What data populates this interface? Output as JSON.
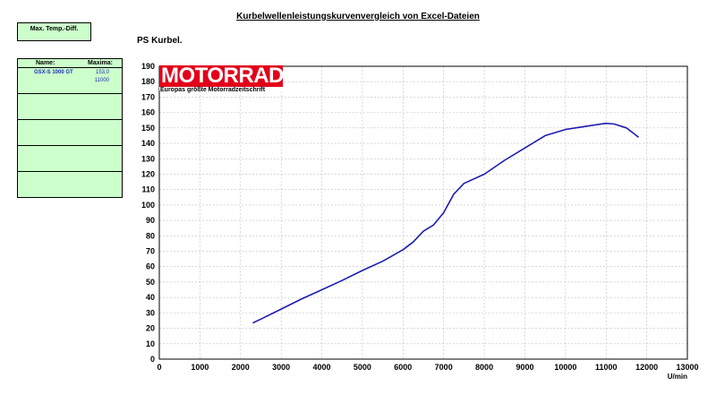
{
  "page": {
    "title": "Kurbelwellenleistungskurvenvergleich von Excel-Dateien",
    "subtitle": "PS Kurbel."
  },
  "temp_box": {
    "label": "Max. Temp.-Diff."
  },
  "legend": {
    "header_name": "Name:",
    "header_max": "Maxima:",
    "rows": [
      {
        "name": "GSX-S 1000 GT",
        "max_value": "153,0",
        "max_rpm": "11000"
      },
      {
        "name": "",
        "max_value": "",
        "max_rpm": ""
      },
      {
        "name": "",
        "max_value": "",
        "max_rpm": ""
      },
      {
        "name": "",
        "max_value": "",
        "max_rpm": ""
      },
      {
        "name": "",
        "max_value": "",
        "max_rpm": ""
      }
    ]
  },
  "logo": {
    "word": "MOTORRAD",
    "tagline": "Europas größte Motorradzeitschrift"
  },
  "colors": {
    "series": "#1c1cb0",
    "panel_bg": "#ccffcc",
    "logo_red": "#e2001a",
    "grid": "#c0c0c0"
  },
  "chart_data": {
    "type": "line",
    "title": "",
    "xlabel": "U/min",
    "ylabel": "",
    "xlim": [
      0,
      13000
    ],
    "ylim": [
      0,
      190
    ],
    "x_ticks": [
      0,
      1000,
      2000,
      3000,
      4000,
      5000,
      6000,
      7000,
      8000,
      9000,
      10000,
      11000,
      12000,
      13000
    ],
    "y_ticks": [
      0,
      10,
      20,
      30,
      40,
      50,
      60,
      70,
      80,
      90,
      100,
      110,
      120,
      130,
      140,
      150,
      160,
      170,
      180,
      190
    ],
    "grid": true,
    "series": [
      {
        "name": "GSX-S 1000 GT",
        "x": [
          2300,
          2500,
          3000,
          3500,
          4000,
          4500,
          5000,
          5500,
          6000,
          6250,
          6500,
          6750,
          7000,
          7250,
          7500,
          8000,
          8500,
          9000,
          9500,
          10000,
          10500,
          11000,
          11200,
          11500,
          11800
        ],
        "y": [
          23.5,
          26,
          32.5,
          39,
          45,
          51,
          57.5,
          63.5,
          71,
          76,
          83,
          87,
          95,
          107,
          114,
          120,
          129,
          137,
          145,
          149,
          151,
          153,
          152.5,
          150,
          144
        ]
      }
    ]
  }
}
